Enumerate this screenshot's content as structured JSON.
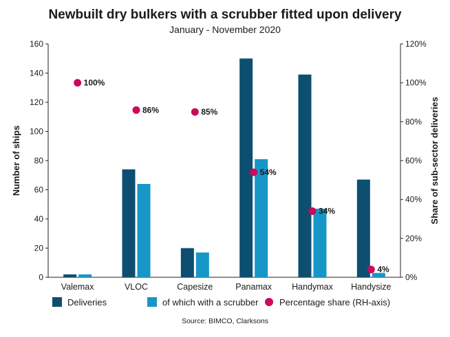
{
  "chart_data": {
    "type": "bar",
    "title": "Newbuilt dry bulkers with a scrubber fitted upon delivery",
    "subtitle": "January - November 2020",
    "source": "Source: BIMCO, Clarksons",
    "categories": [
      "Valemax",
      "VLOC",
      "Capesize",
      "Panamax",
      "Handymax",
      "Handysize"
    ],
    "series": [
      {
        "name": "Deliveries",
        "type": "bar",
        "axis": "left",
        "color": "#0d4f70",
        "values": [
          2,
          74,
          20,
          150,
          139,
          67
        ]
      },
      {
        "name": "of which with a scrubber",
        "type": "bar",
        "axis": "left",
        "color": "#1796c8",
        "values": [
          2,
          64,
          17,
          81,
          47,
          3
        ]
      },
      {
        "name": "Percentage share (RH-axis)",
        "type": "scatter",
        "axis": "right",
        "color": "#cc0a5a",
        "values": [
          100,
          86,
          85,
          54,
          34,
          4
        ],
        "labels": [
          "100%",
          "86%",
          "85%",
          "54%",
          "34%",
          "4%"
        ]
      }
    ],
    "ylabel": "Number of ships",
    "ylim": [
      0,
      160
    ],
    "yticks": [
      "0",
      "20",
      "40",
      "60",
      "80",
      "100",
      "120",
      "140",
      "160"
    ],
    "y2label": "Share of sub-sector deliveries",
    "y2lim": [
      0,
      120
    ],
    "y2ticks": [
      "0%",
      "20%",
      "40%",
      "60%",
      "80%",
      "100%",
      "120%"
    ],
    "grid": false,
    "legend_position": "bottom"
  }
}
